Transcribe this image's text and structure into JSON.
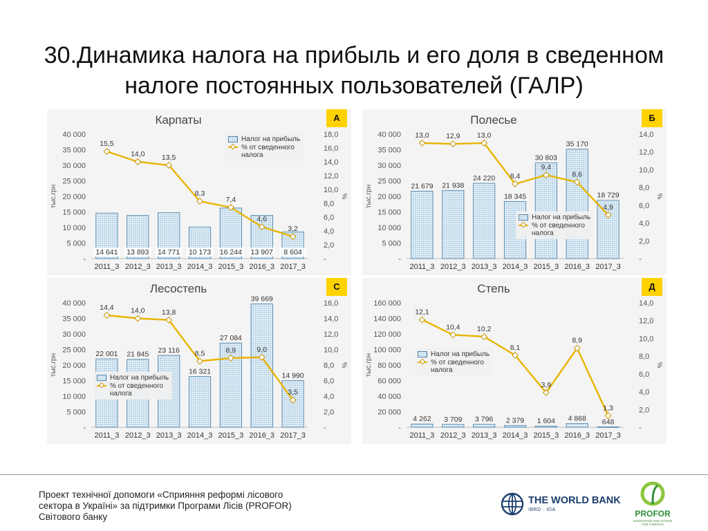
{
  "title": "30.Динамика налога на прибыль и его доля в сведенном налоге постоянных пользователей (ГАЛР)",
  "colors": {
    "bar": "#b8d4e8",
    "bar_border": "#4a7fa6",
    "line": "#e8b400",
    "badge": "#ffd200"
  },
  "chart_data": [
    {
      "type": "bar",
      "title": "Карпаты",
      "badge": "А",
      "ylabel": "тыс.грн",
      "y2label": "%",
      "categories": [
        "2011_3",
        "2012_3",
        "2013_3",
        "2014_3",
        "2015_3",
        "2016_3",
        "2017_3"
      ],
      "y_ticks": [
        "-",
        "5 000",
        "10 000",
        "15 000",
        "20 000",
        "25 000",
        "30 000",
        "35 000",
        "40 000"
      ],
      "ylim": [
        0,
        40000
      ],
      "y2_ticks": [
        "-",
        "2,0",
        "4,0",
        "6,0",
        "8,0",
        "10,0",
        "12,0",
        "14,0",
        "16,0",
        "18,0"
      ],
      "y2lim": [
        0,
        18
      ],
      "series": [
        {
          "name": "Налог на прибыль",
          "type": "bar",
          "values": [
            14641,
            13893,
            14771,
            10173,
            16244,
            13907,
            8604
          ],
          "labels": [
            "14 641",
            "13 893",
            "14 771",
            "10 173",
            "16 244",
            "13 907",
            "8 604"
          ],
          "label_position": "bottom"
        },
        {
          "name": "% от сведенного налога",
          "type": "line",
          "axis": "right",
          "values": [
            15.5,
            14.0,
            13.5,
            8.3,
            7.4,
            4.6,
            3.2
          ],
          "labels": [
            "15,5",
            "14,0",
            "13,5",
            "8,3",
            "7,4",
            "4,6",
            "3,2"
          ]
        }
      ],
      "legend": {
        "position": "top-right",
        "bar": "Налог на прибыль",
        "line": "% от сведенного налога"
      }
    },
    {
      "type": "bar",
      "title": "Полесье",
      "badge": "Б",
      "ylabel": "тыс.грн",
      "y2label": "%",
      "categories": [
        "2011_3",
        "2012_3",
        "2013_3",
        "2014_3",
        "2015_3",
        "2016_3",
        "2017_3"
      ],
      "y_ticks": [
        "-",
        "5 000",
        "10 000",
        "15 000",
        "20 000",
        "25 000",
        "30 000",
        "35 000",
        "40 000"
      ],
      "ylim": [
        0,
        40000
      ],
      "y2_ticks": [
        "-",
        "2,0",
        "4,0",
        "6,0",
        "8,0",
        "10,0",
        "12,0",
        "14,0"
      ],
      "y2lim": [
        0,
        14
      ],
      "series": [
        {
          "name": "Налог на прибыль",
          "type": "bar",
          "values": [
            21679,
            21938,
            24220,
            18345,
            30803,
            35170,
            18729
          ],
          "labels": [
            "21 679",
            "21 938",
            "24 220",
            "18 345",
            "30 803",
            "35 170",
            "18 729"
          ],
          "label_position": "top"
        },
        {
          "name": "% от сведенного налога",
          "type": "line",
          "axis": "right",
          "values": [
            13.0,
            12.9,
            13.0,
            8.4,
            9.4,
            8.6,
            4.9
          ],
          "labels": [
            "13,0",
            "12,9",
            "13,0",
            "8,4",
            "9,4",
            "8,6",
            "4,9"
          ]
        }
      ],
      "legend": {
        "position": "bottom-right",
        "bar": "Налог на прибыль",
        "line": "% от сведенного налога"
      }
    },
    {
      "type": "bar",
      "title": "Лесостепь",
      "badge": "С",
      "ylabel": "тыс.грн",
      "y2label": "%",
      "categories": [
        "2011_3",
        "2012_3",
        "2013_3",
        "2014_3",
        "2015_3",
        "2016_3",
        "2017_3"
      ],
      "y_ticks": [
        "-",
        "5 000",
        "10 000",
        "15 000",
        "20 000",
        "25 000",
        "30 000",
        "35 000",
        "40 000"
      ],
      "ylim": [
        0,
        40000
      ],
      "y2_ticks": [
        "-",
        "2,0",
        "4,0",
        "6,0",
        "8,0",
        "10,0",
        "12,0",
        "14,0",
        "16,0"
      ],
      "y2lim": [
        0,
        16
      ],
      "series": [
        {
          "name": "Налог на прибыль",
          "type": "bar",
          "values": [
            22001,
            21845,
            23116,
            16321,
            27084,
            39669,
            14990
          ],
          "labels": [
            "22 001",
            "21 845",
            "23 116",
            "16 321",
            "27 084",
            "39 669",
            "14 990"
          ],
          "label_position": "top"
        },
        {
          "name": "% от сведенного налога",
          "type": "line",
          "axis": "right",
          "values": [
            14.4,
            14.0,
            13.8,
            8.5,
            8.9,
            9.0,
            3.5
          ],
          "labels": [
            "14,4",
            "14,0",
            "13,8",
            "8,5",
            "8,9",
            "9,0",
            "3,5"
          ]
        }
      ],
      "legend": {
        "position": "bottom-left",
        "bar": "Налог на прибыль",
        "line": "% от сведенного налога"
      }
    },
    {
      "type": "bar",
      "title": "Степь",
      "badge": "Д",
      "ylabel": "тыс.грн",
      "y2label": "%",
      "categories": [
        "2011_3",
        "2012_3",
        "2013_3",
        "2014_3",
        "2015_3",
        "2016_3",
        "2017_3"
      ],
      "y_ticks": [
        "-",
        "20 000",
        "40 000",
        "60 000",
        "80 000",
        "100 000",
        "120 000",
        "140 000",
        "160 000"
      ],
      "ylim": [
        0,
        160000
      ],
      "y2_ticks": [
        "-",
        "2,0",
        "4,0",
        "6,0",
        "8,0",
        "10,0",
        "12,0",
        "14,0"
      ],
      "y2lim": [
        0,
        14
      ],
      "series": [
        {
          "name": "Налог на прибыль",
          "type": "bar",
          "values": [
            4262,
            3709,
            3796,
            2379,
            1604,
            4868,
            648
          ],
          "labels": [
            "4 262",
            "3 709",
            "3 796",
            "2 379",
            "1 604",
            "4 868",
            "648"
          ],
          "label_position": "top"
        },
        {
          "name": "% от сведенного налога",
          "type": "line",
          "axis": "right",
          "values": [
            12.1,
            10.4,
            10.2,
            8.1,
            3.9,
            8.9,
            1.3
          ],
          "labels": [
            "12,1",
            "10,4",
            "10,2",
            "8,1",
            "3,9",
            "8,9",
            "1,3"
          ]
        }
      ],
      "legend": {
        "position": "middle-left",
        "bar": "Налог на прибыль",
        "line": "% от сведенного налога"
      }
    }
  ],
  "footer": {
    "line1": "Проект технічної допомоги «Сприяння реформі лісового",
    "line2": "сектора в Україні» за підтримки Програми Лісів (PROFOR)",
    "line3": "Світового банку"
  },
  "logos": {
    "world_bank": "THE WORLD BANK",
    "world_bank_sub": "IBRD · IDA",
    "profor": "PROFOR",
    "profor_sub": "INNOVATION AND ACTION FOR FORESTS"
  }
}
